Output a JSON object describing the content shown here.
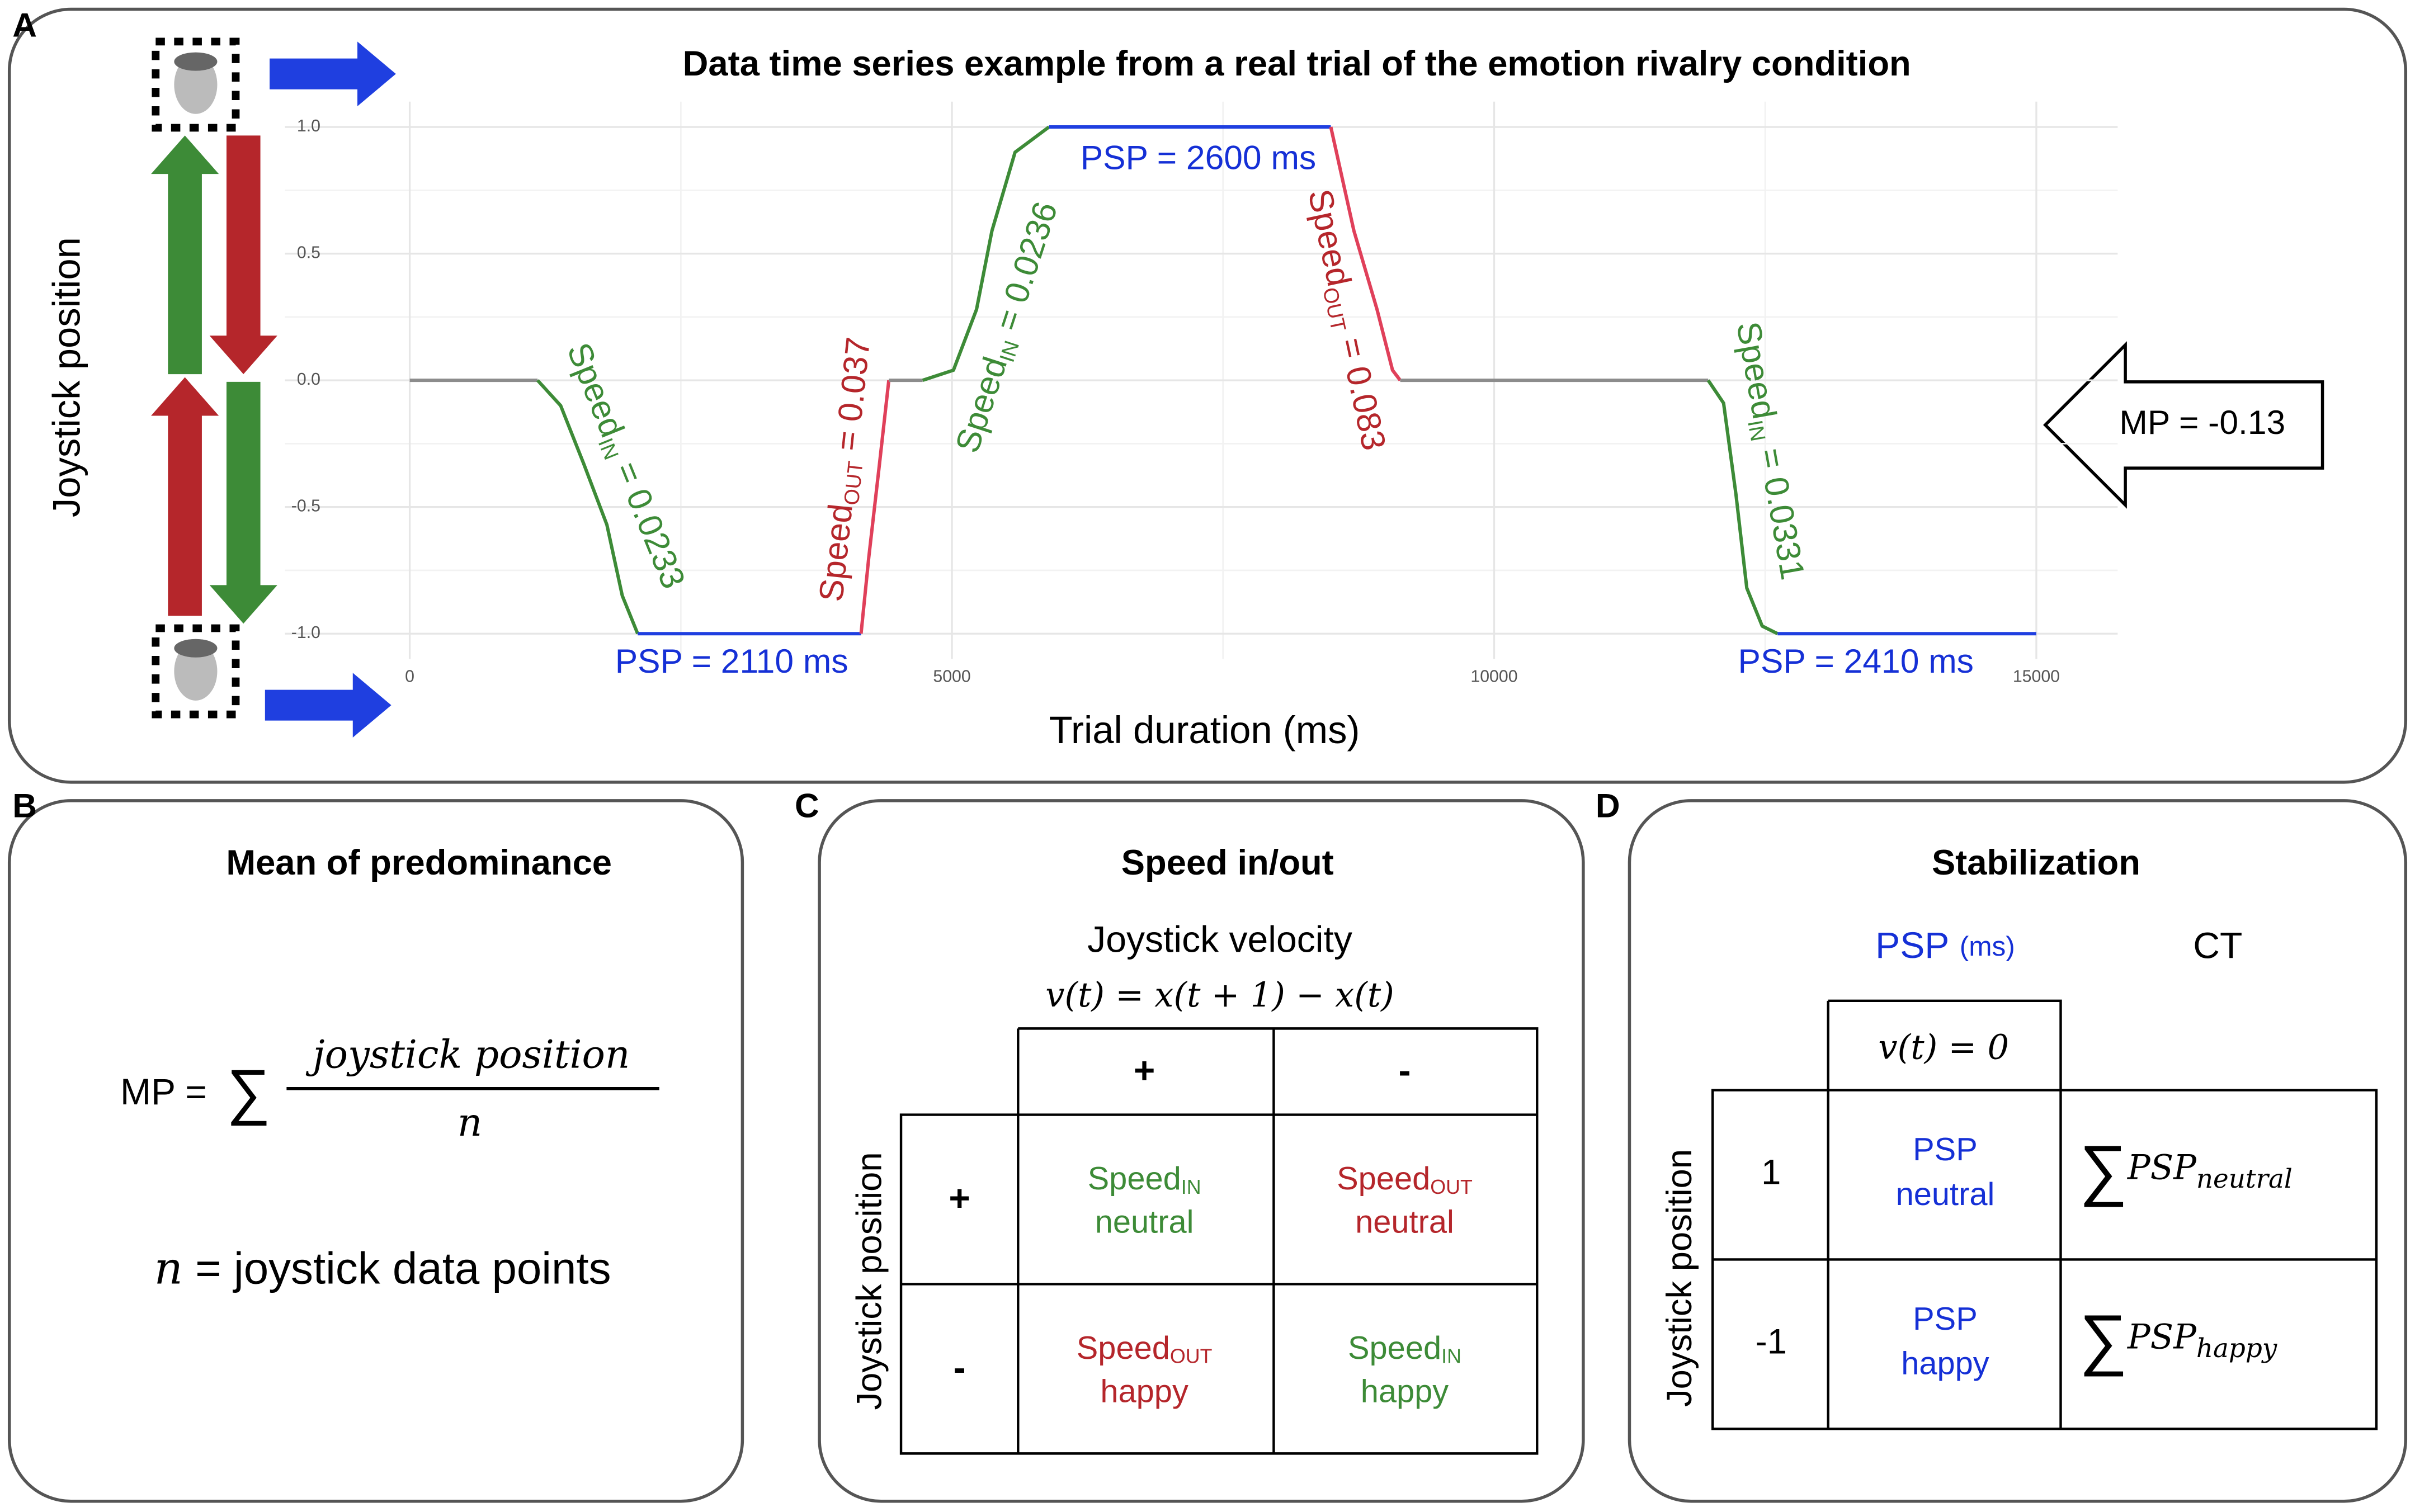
{
  "panel_labels": [
    "A",
    "B",
    "C",
    "D"
  ],
  "chart_data": {
    "type": "line",
    "title": "Data time series example from a real trial of the emotion rivalry condition",
    "xlabel": "Trial duration (ms)",
    "ylabel": "Joystick position",
    "xlim": [
      -1150,
      15750
    ],
    "ylim": [
      -1.1,
      1.1
    ],
    "xticks": [
      0,
      5000,
      10000,
      15000
    ],
    "yticks": [
      {
        "value": 1,
        "label": "1.0"
      },
      0.5,
      {
        "value": 0,
        "label": "0.0"
      },
      -0.5,
      {
        "value": -1,
        "label": "-1.0"
      }
    ],
    "grid": true,
    "series": [
      {
        "color": "#8c8c8c",
        "x": [
          0,
          1179
        ],
        "values": [
          0,
          0
        ]
      },
      {
        "color": "#3d8b37",
        "x": [
          1179,
          1392,
          1605,
          1818,
          1960,
          2102
        ],
        "values": [
          0,
          -0.1,
          -0.33,
          -0.57,
          -0.85,
          -1
        ]
      },
      {
        "color": "#1f3fe0",
        "x": [
          2102,
          4162
        ],
        "values": [
          -1,
          -1
        ]
      },
      {
        "color": "#e0405a",
        "x": [
          4162,
          4233,
          4332,
          4418
        ],
        "values": [
          -1,
          -0.7,
          -0.33,
          0
        ]
      },
      {
        "color": "#8c8c8c",
        "x": [
          4418,
          4730
        ],
        "values": [
          0,
          0
        ]
      },
      {
        "color": "#3d8b37",
        "x": [
          4730,
          5014,
          5227,
          5369,
          5582,
          5895
        ],
        "values": [
          0,
          0.04,
          0.28,
          0.59,
          0.9,
          1
        ]
      },
      {
        "color": "#1f3fe0",
        "x": [
          5895,
          8494
        ],
        "values": [
          1,
          1
        ]
      },
      {
        "color": "#e0405a",
        "x": [
          8494,
          8707,
          8920,
          9063,
          9134
        ],
        "values": [
          1,
          0.59,
          0.28,
          0.04,
          0
        ]
      },
      {
        "color": "#8c8c8c",
        "x": [
          9134,
          11974
        ],
        "values": [
          0,
          0
        ]
      },
      {
        "color": "#3d8b37",
        "x": [
          11974,
          12116,
          12230,
          12330,
          12472,
          12614
        ],
        "values": [
          0,
          -0.09,
          -0.45,
          -0.82,
          -0.97,
          -1
        ]
      },
      {
        "color": "#1f3fe0",
        "x": [
          12614,
          15000
        ],
        "values": [
          -1,
          -1
        ]
      }
    ],
    "annotations": [
      {
        "text": "Speed",
        "sub": "IN",
        "rest": " = 0.0233",
        "color": "#3d8b37"
      },
      {
        "text": "Speed",
        "sub": "OUT",
        "rest": " = 0.037",
        "color": "#b5262b"
      },
      {
        "text": "Speed",
        "sub": "IN",
        "rest": " = 0.0236",
        "color": "#3d8b37"
      },
      {
        "text": "Speed",
        "sub": "OUT",
        "rest": " = 0.083",
        "color": "#b5262b"
      },
      {
        "text": "Speed",
        "sub": "IN",
        "rest": " = 0.0331",
        "color": "#3d8b37"
      },
      {
        "text": "PSP = 2600 ms",
        "color": "#1530d6"
      },
      {
        "text": "PSP = 2110 ms",
        "color": "#1530d6"
      },
      {
        "text": "PSP = 2410 ms",
        "color": "#1530d6"
      },
      {
        "text": "MP = -0.13",
        "color": "#000000"
      }
    ]
  },
  "predominance": {
    "title": "Mean of predominance",
    "prefix": "MP =",
    "sum": "∑",
    "numerator": "joystick position",
    "denominator": "n",
    "n_symbol": "n",
    "n_text": " = joystick data points"
  },
  "speed": {
    "title": "Speed in/out",
    "subtitle": "Joystick velocity",
    "formula": "v(t) = x(t + 1) − x(t)",
    "ylabel": "Joystick position",
    "columns": [
      "+",
      "-"
    ],
    "rows": [
      "+",
      "-"
    ],
    "cells": [
      [
        {
          "text": "Speed",
          "sub": "IN",
          "line2": "neutral",
          "color": "#3d8b37"
        },
        {
          "text": "Speed",
          "sub": "OUT",
          "line2": "neutral",
          "color": "#b5262b"
        }
      ],
      [
        {
          "text": "Speed",
          "sub": "OUT",
          "line2": "happy",
          "color": "#b5262b"
        },
        {
          "text": "Speed",
          "sub": "IN",
          "line2": "happy",
          "color": "#3d8b37"
        }
      ]
    ]
  },
  "stabilization": {
    "title": "Stabilization",
    "col1": "PSP",
    "col1_unit": "(ms)",
    "col2": "CT",
    "condition": "v(t) = 0",
    "ylabel": "Joystick position",
    "rows": [
      {
        "label": "1",
        "psp": [
          "PSP",
          "neutral"
        ],
        "sum": "∑",
        "base": "PSP",
        "sub": "neutral"
      },
      {
        "label": "-1",
        "psp": [
          "PSP",
          "happy"
        ],
        "sum": "∑",
        "base": "PSP",
        "sub": "happy"
      }
    ]
  }
}
